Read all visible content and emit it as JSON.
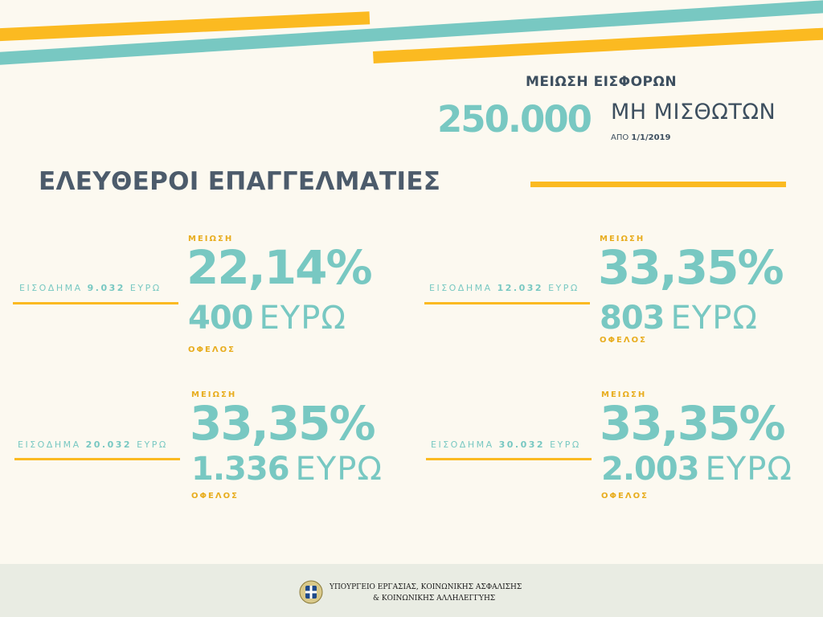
{
  "header": {
    "headline": "ΜΕΙΩΣΗ ΕΙΣΦΟΡΩΝ",
    "big_number": "250.000",
    "subheadline": "ΜΗ ΜΙΣΘΩΤΩΝ",
    "since_prefix": "ΑΠΟ",
    "since_date": "1/1/2019"
  },
  "section_title": "ΕΛΕΥΘΕΡΟΙ ΕΠΑΓΓΕΛΜΑΤΙΕΣ",
  "labels": {
    "reduction": "ΜΕΙΩΣΗ",
    "benefit": "ΟΦΕΛΟΣ",
    "income": "ΕΙΣΟΔΗΜΑ",
    "currency": "ΕΥΡΩ"
  },
  "cards": [
    {
      "income_value": "9.032",
      "reduction_pct": "22,14%",
      "benefit_value": "400"
    },
    {
      "income_value": "12.032",
      "reduction_pct": "33,35%",
      "benefit_value": "803"
    },
    {
      "income_value": "20.032",
      "reduction_pct": "33,35%",
      "benefit_value": "1.336"
    },
    {
      "income_value": "30.032",
      "reduction_pct": "33,35%",
      "benefit_value": "2.003"
    }
  ],
  "footer": {
    "ministry_line1": "ΥΠΟΥΡΓΕΙΟ ΕΡΓΑΣΙΑΣ, ΚΟΙΝΩΝΙΚΗΣ ΑΣΦΑΛΙΣΗΣ",
    "ministry_line2": "& ΚΟΙΝΩΝΙΚΗΣ ΑΛΛΗΛΕΓΓΥΗΣ"
  },
  "colors": {
    "accent_yellow": "#fbba21",
    "accent_teal": "#78c8c2",
    "text_dark": "#3d4f5f",
    "background": "#fcf9f0",
    "footer_bg": "#e9ece3"
  }
}
